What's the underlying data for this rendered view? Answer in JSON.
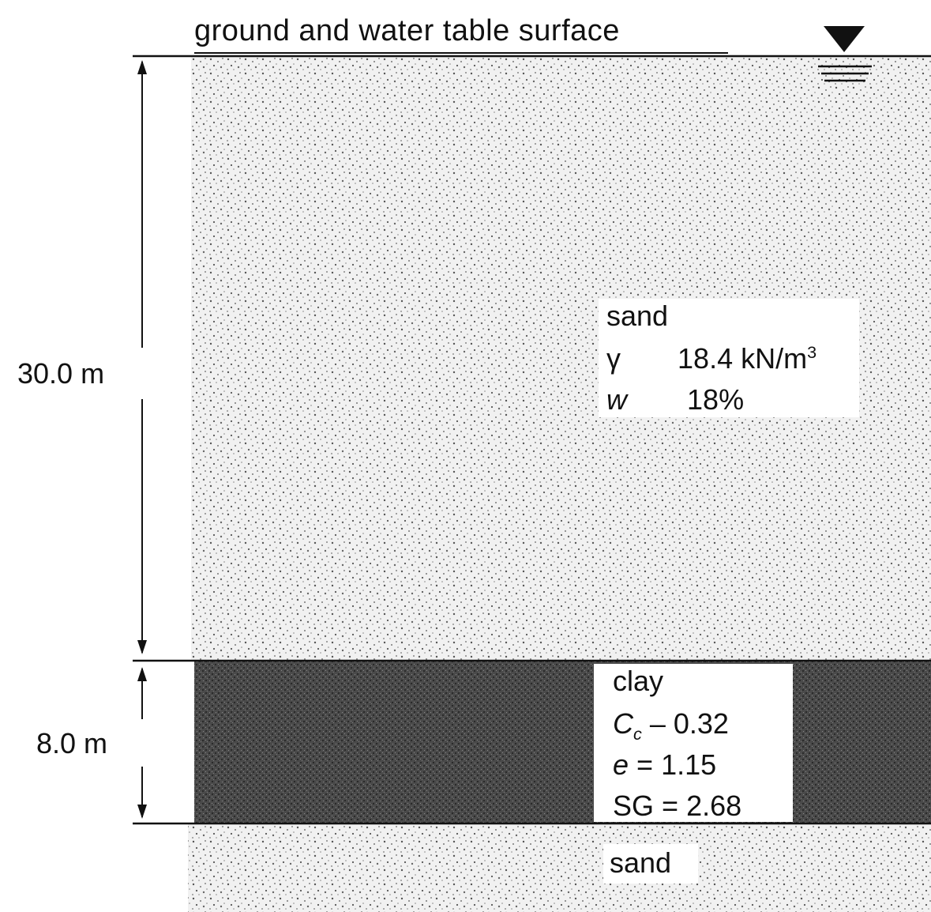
{
  "title": "ground and water table surface",
  "dimensions": {
    "sand_thickness": "30.0 m",
    "clay_thickness": "8.0 m"
  },
  "layers": {
    "upper_sand": {
      "name": "sand",
      "gamma_symbol": "γ",
      "gamma_value": "18.4 kN/m",
      "gamma_unit_exp": "3",
      "w_symbol": "w",
      "w_value": "18%"
    },
    "clay": {
      "name": "clay",
      "cc_symbol": "C",
      "cc_sub": "c",
      "cc_value": "0.32",
      "e_symbol": "e",
      "e_value": "1.15",
      "sg_symbol": "SG",
      "sg_value": "2.68"
    },
    "lower_sand": {
      "name": "sand"
    }
  },
  "colors": {
    "sand_fill": "#efefef",
    "clay_fill": "#4a4a4a",
    "line": "#111111"
  },
  "icons": {
    "water_table": "water-table-triangle-icon"
  }
}
